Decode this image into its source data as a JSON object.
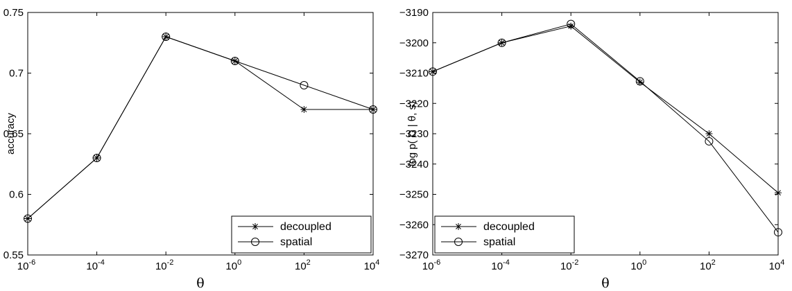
{
  "chart_data": [
    {
      "type": "line",
      "ylabel": "accuracy",
      "xlabel": "θ",
      "x_scale": "log",
      "x": [
        1e-06,
        0.0001,
        0.01,
        1,
        100,
        10000
      ],
      "x_tick_exponents": [
        "-6",
        "-4",
        "-2",
        "0",
        "2",
        "4"
      ],
      "ylim": [
        0.55,
        0.75
      ],
      "y_ticks": [
        "0.55",
        "0.6",
        "0.65",
        "0.7",
        "0.75"
      ],
      "grid": false,
      "legend_position": "bottom-right",
      "series": [
        {
          "name": "decoupled",
          "marker": "asterisk",
          "values": [
            0.58,
            0.63,
            0.73,
            0.71,
            0.67,
            0.67
          ]
        },
        {
          "name": "spatial",
          "marker": "circle",
          "values": [
            0.58,
            0.63,
            0.73,
            0.71,
            0.69,
            0.67
          ]
        }
      ]
    },
    {
      "type": "line",
      "ylabel": "log p( D | θ, s)",
      "xlabel": "θ",
      "x_scale": "log",
      "x": [
        1e-06,
        0.0001,
        0.01,
        1,
        100,
        10000
      ],
      "x_tick_exponents": [
        "-6",
        "-4",
        "-2",
        "0",
        "2",
        "4"
      ],
      "ylim": [
        -3270,
        -3190
      ],
      "y_ticks": [
        "−3270",
        "−3260",
        "−3250",
        "−3240",
        "−3230",
        "−3220",
        "−3210",
        "−3200",
        "−3190"
      ],
      "grid": false,
      "legend_position": "bottom-left",
      "series": [
        {
          "name": "decoupled",
          "marker": "asterisk",
          "values": [
            -3209.5,
            -3200,
            -3194.5,
            -3213,
            -3230,
            -3249.5
          ]
        },
        {
          "name": "spatial",
          "marker": "circle",
          "values": [
            -3209.5,
            -3200,
            -3193.8,
            -3212.7,
            -3232.5,
            -3262.5
          ]
        }
      ]
    }
  ]
}
